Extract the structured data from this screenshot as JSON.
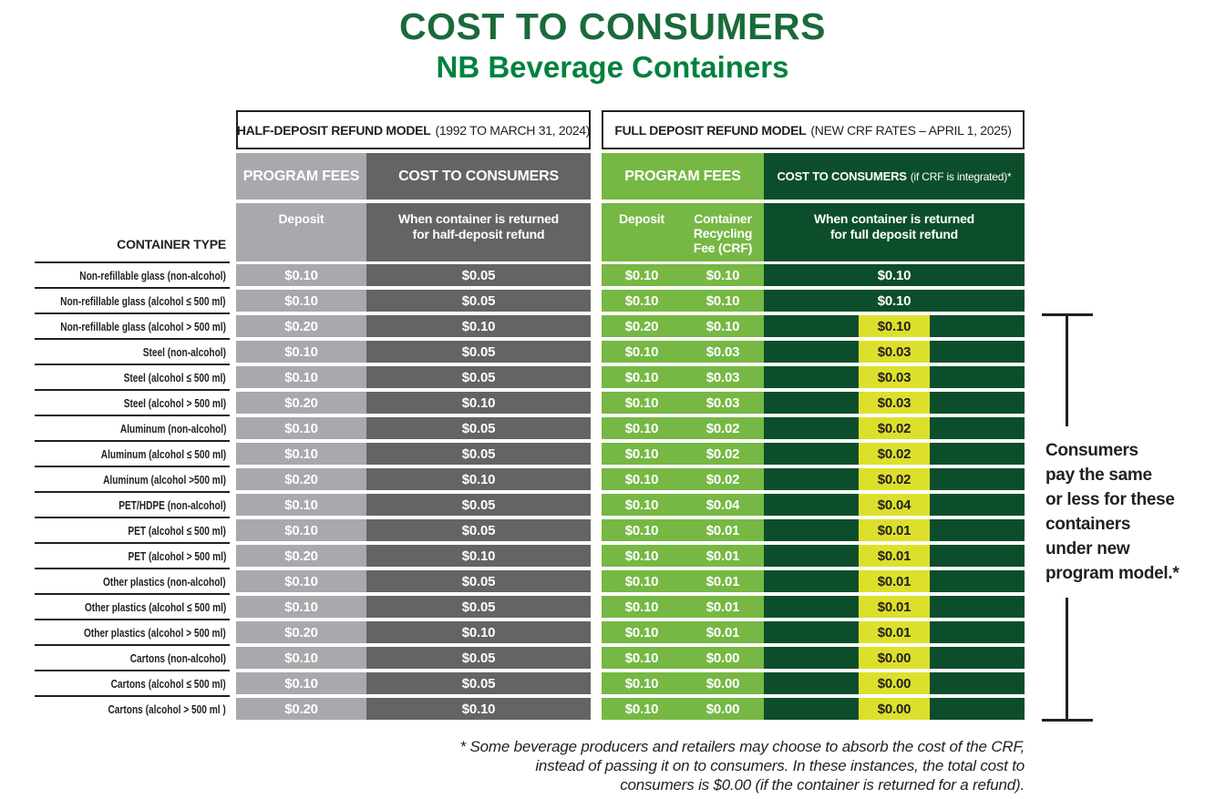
{
  "title": "COST TO CONSUMERS",
  "subtitle": "NB Beverage Containers",
  "container_type_heading": "CONTAINER TYPE",
  "colors": {
    "title_green": "#1A6A3A",
    "subtitle_green": "#00813E",
    "light_gray": "#A7A9AC",
    "dark_gray": "#636466",
    "green": "#76B843",
    "dark_green": "#0C4E2B",
    "yellow": "#DDE02B",
    "ink": "#231F20"
  },
  "half_model": {
    "header_bold": "HALF-DEPOSIT REFUND MODEL",
    "header_paren": "(1992 TO MARCH 31, 2024)",
    "program_fees": "PROGRAM FEES",
    "cost_to_consumers": "COST TO CONSUMERS",
    "deposit": "Deposit",
    "returned": "When container is returned\nfor half-deposit refund"
  },
  "full_model": {
    "header_bold": "FULL DEPOSIT REFUND MODEL",
    "header_paren": "(NEW CRF RATES – APRIL 1, 2025)",
    "program_fees": "PROGRAM FEES",
    "cost_to_consumers": "COST TO CONSUMERS",
    "cost_suffix": "(if CRF is integrated)*",
    "deposit": "Deposit",
    "crf": "Container\nRecycling\nFee (CRF)",
    "returned": "When container is returned\nfor full deposit refund"
  },
  "rows": [
    {
      "label": "Non-refillable glass (non-alcohol)",
      "hd_deposit": "$0.10",
      "hd_cost": "$0.05",
      "fd_deposit": "$0.10",
      "fd_crf": "$0.10",
      "fd_cost": "$0.10",
      "highlight": false
    },
    {
      "label": "Non-refillable glass (alcohol ≤ 500 ml)",
      "hd_deposit": "$0.10",
      "hd_cost": "$0.05",
      "fd_deposit": "$0.10",
      "fd_crf": "$0.10",
      "fd_cost": "$0.10",
      "highlight": false
    },
    {
      "label": "Non-refillable glass (alcohol > 500 ml)",
      "hd_deposit": "$0.20",
      "hd_cost": "$0.10",
      "fd_deposit": "$0.20",
      "fd_crf": "$0.10",
      "fd_cost": "$0.10",
      "highlight": true
    },
    {
      "label": "Steel (non-alcohol)",
      "hd_deposit": "$0.10",
      "hd_cost": "$0.05",
      "fd_deposit": "$0.10",
      "fd_crf": "$0.03",
      "fd_cost": "$0.03",
      "highlight": true
    },
    {
      "label": "Steel (alcohol ≤ 500 ml)",
      "hd_deposit": "$0.10",
      "hd_cost": "$0.05",
      "fd_deposit": "$0.10",
      "fd_crf": "$0.03",
      "fd_cost": "$0.03",
      "highlight": true
    },
    {
      "label": "Steel (alcohol > 500 ml)",
      "hd_deposit": "$0.20",
      "hd_cost": "$0.10",
      "fd_deposit": "$0.10",
      "fd_crf": "$0.03",
      "fd_cost": "$0.03",
      "highlight": true
    },
    {
      "label": "Aluminum (non-alcohol)",
      "hd_deposit": "$0.10",
      "hd_cost": "$0.05",
      "fd_deposit": "$0.10",
      "fd_crf": "$0.02",
      "fd_cost": "$0.02",
      "highlight": true
    },
    {
      "label": "Aluminum (alcohol ≤ 500 ml)",
      "hd_deposit": "$0.10",
      "hd_cost": "$0.05",
      "fd_deposit": "$0.10",
      "fd_crf": "$0.02",
      "fd_cost": "$0.02",
      "highlight": true
    },
    {
      "label": "Aluminum (alcohol >500 ml)",
      "hd_deposit": "$0.20",
      "hd_cost": "$0.10",
      "fd_deposit": "$0.10",
      "fd_crf": "$0.02",
      "fd_cost": "$0.02",
      "highlight": true
    },
    {
      "label": "PET/HDPE (non-alcohol)",
      "hd_deposit": "$0.10",
      "hd_cost": "$0.05",
      "fd_deposit": "$0.10",
      "fd_crf": "$0.04",
      "fd_cost": "$0.04",
      "highlight": true
    },
    {
      "label": "PET (alcohol ≤ 500 ml)",
      "hd_deposit": "$0.10",
      "hd_cost": "$0.05",
      "fd_deposit": "$0.10",
      "fd_crf": "$0.01",
      "fd_cost": "$0.01",
      "highlight": true
    },
    {
      "label": "PET (alcohol > 500 ml)",
      "hd_deposit": "$0.20",
      "hd_cost": "$0.10",
      "fd_deposit": "$0.10",
      "fd_crf": "$0.01",
      "fd_cost": "$0.01",
      "highlight": true
    },
    {
      "label": "Other plastics (non-alcohol)",
      "hd_deposit": "$0.10",
      "hd_cost": "$0.05",
      "fd_deposit": "$0.10",
      "fd_crf": "$0.01",
      "fd_cost": "$0.01",
      "highlight": true
    },
    {
      "label": "Other plastics (alcohol ≤ 500 ml)",
      "hd_deposit": "$0.10",
      "hd_cost": "$0.05",
      "fd_deposit": "$0.10",
      "fd_crf": "$0.01",
      "fd_cost": "$0.01",
      "highlight": true
    },
    {
      "label": "Other plastics (alcohol > 500 ml)",
      "hd_deposit": "$0.20",
      "hd_cost": "$0.10",
      "fd_deposit": "$0.10",
      "fd_crf": "$0.01",
      "fd_cost": "$0.01",
      "highlight": true
    },
    {
      "label": "Cartons (non-alcohol)",
      "hd_deposit": "$0.10",
      "hd_cost": "$0.05",
      "fd_deposit": "$0.10",
      "fd_crf": "$0.00",
      "fd_cost": "$0.00",
      "highlight": true
    },
    {
      "label": "Cartons (alcohol ≤ 500 ml)",
      "hd_deposit": "$0.10",
      "hd_cost": "$0.05",
      "fd_deposit": "$0.10",
      "fd_crf": "$0.00",
      "fd_cost": "$0.00",
      "highlight": true
    },
    {
      "label": "Cartons (alcohol > 500 ml )",
      "hd_deposit": "$0.20",
      "hd_cost": "$0.10",
      "fd_deposit": "$0.10",
      "fd_crf": "$0.00",
      "fd_cost": "$0.00",
      "highlight": true
    }
  ],
  "annotation": "Consumers\npay the same\nor less for these\ncontainers\nunder new\nprogram model.*",
  "footnote": "* Some beverage producers and retailers may choose to absorb the cost of the CRF,\ninstead of passing it on to consumers. In these instances, the total cost to\nconsumers is $0.00 (if the container is returned for a refund).",
  "chart_data": {
    "type": "table",
    "title": "COST TO CONSUMERS — NB Beverage Containers",
    "columns": [
      "Container type",
      "Half-deposit model (1992 to March 31, 2024): Deposit",
      "Half-deposit model: Cost to consumers when container is returned for half-deposit refund",
      "Full deposit model (new CRF rates – April 1, 2025): Deposit",
      "Full deposit model: Container Recycling Fee (CRF)",
      "Full deposit model: Cost to consumers when container is returned for full deposit refund (if CRF is integrated)"
    ],
    "rows": [
      [
        "Non-refillable glass (non-alcohol)",
        0.1,
        0.05,
        0.1,
        0.1,
        0.1
      ],
      [
        "Non-refillable glass (alcohol ≤ 500 ml)",
        0.1,
        0.05,
        0.1,
        0.1,
        0.1
      ],
      [
        "Non-refillable glass (alcohol > 500 ml)",
        0.2,
        0.1,
        0.2,
        0.1,
        0.1
      ],
      [
        "Steel (non-alcohol)",
        0.1,
        0.05,
        0.1,
        0.03,
        0.03
      ],
      [
        "Steel (alcohol ≤ 500 ml)",
        0.1,
        0.05,
        0.1,
        0.03,
        0.03
      ],
      [
        "Steel (alcohol > 500 ml)",
        0.2,
        0.1,
        0.1,
        0.03,
        0.03
      ],
      [
        "Aluminum (non-alcohol)",
        0.1,
        0.05,
        0.1,
        0.02,
        0.02
      ],
      [
        "Aluminum (alcohol ≤ 500 ml)",
        0.1,
        0.05,
        0.1,
        0.02,
        0.02
      ],
      [
        "Aluminum (alcohol >500 ml)",
        0.2,
        0.1,
        0.1,
        0.02,
        0.02
      ],
      [
        "PET/HDPE (non-alcohol)",
        0.1,
        0.05,
        0.1,
        0.04,
        0.04
      ],
      [
        "PET (alcohol ≤ 500 ml)",
        0.1,
        0.05,
        0.1,
        0.01,
        0.01
      ],
      [
        "PET (alcohol > 500 ml)",
        0.2,
        0.1,
        0.1,
        0.01,
        0.01
      ],
      [
        "Other plastics (non-alcohol)",
        0.1,
        0.05,
        0.1,
        0.01,
        0.01
      ],
      [
        "Other plastics (alcohol ≤ 500 ml)",
        0.1,
        0.05,
        0.1,
        0.01,
        0.01
      ],
      [
        "Other plastics (alcohol > 500 ml)",
        0.2,
        0.1,
        0.1,
        0.01,
        0.01
      ],
      [
        "Cartons (non-alcohol)",
        0.1,
        0.05,
        0.1,
        0.0,
        0.0
      ],
      [
        "Cartons (alcohol ≤ 500 ml)",
        0.1,
        0.05,
        0.1,
        0.0,
        0.0
      ],
      [
        "Cartons (alcohol > 500 ml)",
        0.2,
        0.1,
        0.1,
        0.0,
        0.0
      ]
    ],
    "notes": "Rows 3-18 of the full-deposit cost column are highlighted yellow; bracket annotation: consumers pay the same or less for these containers under new program model."
  }
}
